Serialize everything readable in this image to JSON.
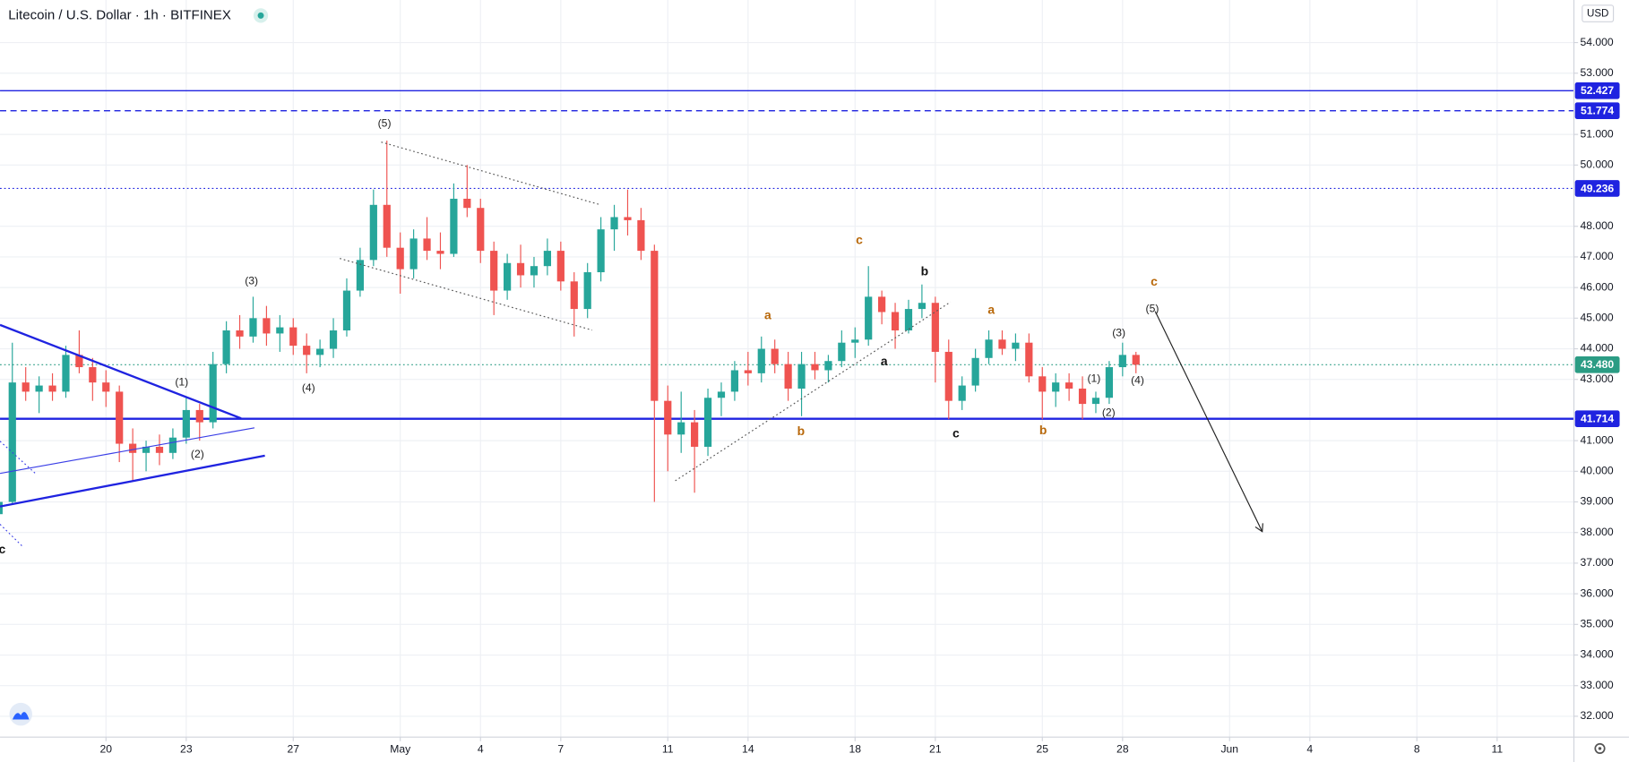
{
  "chart_data": {
    "type": "candlestick",
    "title": "Litecoin / U.S. Dollar · 1h · BITFINEX",
    "currency": "USD",
    "up_color": "#26a69a",
    "down_color": "#ef5350",
    "grid": true,
    "xlim": [
      16.04,
      74.87
    ],
    "ylim": [
      31.32,
      55.39
    ],
    "xticks": [
      20,
      23,
      27,
      {
        "value": 31,
        "label": "May"
      },
      {
        "value": 34,
        "label": "4"
      },
      {
        "value": 37,
        "label": "7"
      },
      {
        "value": 41,
        "label": "11"
      },
      {
        "value": 44,
        "label": "14"
      },
      {
        "value": 48,
        "label": "18"
      },
      {
        "value": 51,
        "label": "21"
      },
      {
        "value": 55,
        "label": "25"
      },
      {
        "value": 58,
        "label": "28"
      },
      {
        "value": 62,
        "label": "Jun"
      },
      {
        "value": 65,
        "label": "4"
      },
      {
        "value": 69,
        "label": "8"
      },
      {
        "value": 72,
        "label": "11"
      }
    ],
    "yticks": [
      {
        "value": 32,
        "label": "32.000"
      },
      {
        "value": 33,
        "label": "33.000"
      },
      {
        "value": 34,
        "label": "34.000"
      },
      {
        "value": 35,
        "label": "35.000"
      },
      {
        "value": 36,
        "label": "36.000"
      },
      {
        "value": 37,
        "label": "37.000"
      },
      {
        "value": 38,
        "label": "38.000"
      },
      {
        "value": 39,
        "label": "39.000"
      },
      {
        "value": 40,
        "label": "40.000"
      },
      {
        "value": 41,
        "label": "41.000"
      },
      {
        "value": 43,
        "label": "43.000"
      },
      {
        "value": 44,
        "label": "44.000"
      },
      {
        "value": 45,
        "label": "45.000"
      },
      {
        "value": 46,
        "label": "46.000"
      },
      {
        "value": 47,
        "label": "47.000"
      },
      {
        "value": 48,
        "label": "48.000"
      },
      {
        "value": 50,
        "label": "50.000"
      },
      {
        "value": 51,
        "label": "51.000"
      },
      {
        "value": 53,
        "label": "53.000"
      },
      {
        "value": 54,
        "label": "54.000"
      }
    ],
    "x": [
      16,
      16.5,
      17,
      17.5,
      18,
      18.5,
      19,
      19.5,
      20,
      20.5,
      21,
      21.5,
      22,
      22.5,
      23,
      23.5,
      24,
      24.5,
      25,
      25.5,
      26,
      26.5,
      27,
      27.5,
      28,
      28.5,
      29,
      29.5,
      30,
      30.5,
      31,
      31.5,
      32,
      32.5,
      33,
      33.5,
      34,
      34.5,
      35,
      35.5,
      36,
      36.5,
      37,
      37.5,
      38,
      38.5,
      39,
      39.5,
      40,
      40.5,
      41,
      41.5,
      42,
      42.5,
      43,
      43.5,
      44,
      44.5,
      45,
      45.5,
      46,
      46.5,
      47,
      47.5,
      48,
      48.5,
      49,
      49.5,
      50,
      50.5,
      51,
      51.5,
      52,
      52.5,
      53,
      53.5,
      54,
      54.5,
      55,
      55.5,
      56,
      56.5,
      57,
      57.5,
      58,
      58.5
    ],
    "open": [
      38.6,
      39.0,
      42.9,
      42.6,
      42.8,
      42.6,
      43.8,
      43.4,
      42.9,
      42.6,
      40.9,
      40.6,
      40.8,
      40.6,
      41.1,
      42.0,
      41.6,
      43.5,
      44.6,
      44.4,
      45.0,
      44.5,
      44.7,
      44.1,
      43.8,
      44.0,
      44.6,
      45.9,
      46.9,
      48.7,
      47.3,
      46.6,
      47.6,
      47.2,
      47.1,
      48.9,
      48.6,
      47.2,
      45.9,
      46.8,
      46.4,
      46.7,
      47.2,
      46.2,
      45.3,
      46.5,
      47.9,
      48.3,
      48.2,
      47.2,
      42.3,
      41.2,
      41.6,
      40.8,
      42.4,
      42.6,
      43.3,
      43.2,
      44.0,
      43.5,
      42.7,
      43.5,
      43.3,
      43.6,
      44.2,
      44.3,
      45.7,
      45.2,
      44.6,
      45.3,
      45.5,
      43.9,
      42.3,
      42.8,
      43.7,
      44.3,
      44.0,
      44.2,
      43.1,
      42.6,
      42.9,
      42.7,
      42.2,
      42.4,
      43.4,
      43.8
    ],
    "high": [
      39.2,
      44.2,
      43.4,
      43.1,
      43.2,
      44.1,
      44.6,
      43.7,
      43.3,
      42.8,
      41.4,
      41.0,
      41.2,
      41.4,
      42.4,
      42.2,
      43.9,
      44.9,
      45.1,
      45.7,
      45.4,
      45.1,
      45.0,
      44.5,
      44.3,
      45.0,
      46.3,
      47.3,
      49.2,
      50.8,
      47.8,
      47.9,
      48.3,
      47.8,
      49.4,
      50.0,
      48.9,
      47.5,
      47.1,
      47.4,
      47.0,
      47.6,
      47.5,
      46.5,
      46.8,
      48.3,
      48.7,
      49.2,
      48.6,
      47.4,
      42.8,
      42.6,
      42.0,
      42.7,
      42.9,
      43.6,
      43.9,
      44.4,
      44.3,
      43.9,
      43.9,
      43.9,
      43.8,
      44.6,
      44.7,
      46.7,
      45.9,
      45.5,
      45.6,
      46.1,
      45.7,
      44.3,
      43.1,
      44.0,
      44.6,
      44.6,
      44.5,
      44.5,
      43.4,
      43.2,
      43.2,
      43.1,
      42.6,
      43.6,
      44.2,
      43.9
    ],
    "low": [
      38.1,
      38.9,
      42.3,
      41.9,
      42.3,
      42.4,
      43.2,
      42.3,
      42.1,
      40.3,
      39.7,
      40.0,
      40.2,
      40.4,
      40.9,
      41.0,
      41.4,
      43.2,
      44.0,
      44.2,
      44.1,
      43.9,
      43.8,
      43.2,
      43.4,
      43.7,
      44.4,
      45.7,
      46.7,
      47.0,
      45.8,
      46.3,
      46.9,
      46.6,
      47.0,
      48.3,
      46.8,
      45.1,
      45.6,
      46.0,
      46.0,
      46.4,
      45.9,
      44.4,
      45.0,
      46.2,
      47.2,
      47.7,
      46.9,
      39.0,
      40.0,
      40.6,
      39.3,
      40.5,
      41.8,
      42.3,
      42.8,
      42.9,
      43.2,
      42.3,
      41.8,
      43.0,
      42.9,
      43.4,
      43.7,
      44.1,
      44.8,
      44.0,
      44.5,
      45.0,
      42.9,
      41.7,
      42.0,
      42.6,
      43.5,
      43.8,
      43.6,
      42.9,
      41.7,
      42.1,
      42.3,
      41.7,
      41.9,
      42.2,
      43.1,
      43.2
    ],
    "close": [
      39.0,
      42.9,
      42.6,
      42.8,
      42.6,
      43.8,
      43.4,
      42.9,
      42.6,
      40.9,
      40.6,
      40.8,
      40.6,
      41.1,
      42.0,
      41.6,
      43.5,
      44.6,
      44.4,
      45.0,
      44.5,
      44.7,
      44.1,
      43.8,
      44.0,
      44.6,
      45.9,
      46.9,
      48.7,
      47.3,
      46.6,
      47.6,
      47.2,
      47.1,
      48.9,
      48.6,
      47.2,
      45.9,
      46.8,
      46.4,
      46.7,
      47.2,
      46.2,
      45.3,
      46.5,
      47.9,
      48.3,
      48.2,
      47.2,
      42.3,
      41.2,
      41.6,
      40.8,
      42.4,
      42.6,
      43.3,
      43.2,
      44.0,
      43.5,
      42.7,
      43.5,
      43.3,
      43.6,
      44.2,
      44.3,
      45.7,
      45.2,
      44.6,
      45.3,
      45.5,
      43.9,
      42.3,
      42.8,
      43.7,
      44.3,
      44.0,
      44.2,
      43.1,
      42.6,
      42.9,
      42.7,
      42.2,
      42.4,
      43.4,
      43.8,
      43.48
    ],
    "price_lines": [
      {
        "value": 52.427,
        "style": "solid",
        "color": "#1f23e0"
      },
      {
        "value": 51.774,
        "style": "dashed",
        "color": "#1f23e0"
      },
      {
        "value": 49.236,
        "style": "dotted",
        "color": "#1f23e0"
      },
      {
        "value": 43.48,
        "label": "43.480",
        "style": "dotted",
        "color": "#2b9c84"
      },
      {
        "value": 41.714,
        "style": "thick",
        "color": "#1f23e0"
      }
    ],
    "trendlines": [
      {
        "x": [
          16.04,
          25.05
        ],
        "y": [
          44.78,
          41.73
        ],
        "style": "thick",
        "color": "#1f23e0"
      },
      {
        "x": [
          16.04,
          25.94
        ],
        "y": [
          38.85,
          40.51
        ],
        "style": "thick",
        "color": "#1f23e0"
      },
      {
        "x": [
          16.04,
          25.55
        ],
        "y": [
          39.93,
          41.42
        ],
        "style": "thin",
        "color": "#3a3ee6"
      },
      {
        "x": [
          16.04,
          17.4
        ],
        "y": [
          40.98,
          39.9
        ],
        "style": "dotted",
        "color": "#3a3ee6"
      },
      {
        "x": [
          16.04,
          16.9
        ],
        "y": [
          38.27,
          37.53
        ],
        "style": "dotted",
        "color": "#3a3ee6"
      },
      {
        "x": [
          30.29,
          38.45
        ],
        "y": [
          50.75,
          48.71
        ],
        "style": "dotted",
        "color": "#555555"
      },
      {
        "x": [
          28.74,
          38.17
        ],
        "y": [
          46.95,
          44.61
        ],
        "style": "dotted",
        "color": "#555555"
      },
      {
        "x": [
          41.28,
          51.57
        ],
        "y": [
          39.69,
          45.53
        ],
        "style": "dotted",
        "color": "#555555"
      },
      {
        "x": [
          59.22,
          63.22
        ],
        "y": [
          45.22,
          38.03
        ],
        "style": "arrow",
        "color": "#222222"
      }
    ],
    "annotations": [
      {
        "text": "(5)",
        "x": 30.41,
        "y": 51.35,
        "color": "#222222"
      },
      {
        "text": "(3)",
        "x": 25.44,
        "y": 46.2,
        "color": "#222222"
      },
      {
        "text": "(4)",
        "x": 27.57,
        "y": 42.71,
        "color": "#222222"
      },
      {
        "text": "(1)",
        "x": 22.83,
        "y": 42.9,
        "color": "#222222"
      },
      {
        "text": "(2)",
        "x": 23.42,
        "y": 40.54,
        "color": "#222222"
      },
      {
        "text": "c",
        "x": 16.12,
        "y": 37.42,
        "color": "#111111"
      },
      {
        "text": "a",
        "x": 44.74,
        "y": 45.08,
        "color": "#b8680a"
      },
      {
        "text": "b",
        "x": 45.98,
        "y": 41.29,
        "color": "#b8680a"
      },
      {
        "text": "c",
        "x": 48.16,
        "y": 47.53,
        "color": "#b8680a"
      },
      {
        "text": "b",
        "x": 50.6,
        "y": 46.51,
        "color": "#111111"
      },
      {
        "text": "a",
        "x": 49.09,
        "y": 43.56,
        "color": "#111111"
      },
      {
        "text": "c",
        "x": 51.77,
        "y": 41.22,
        "color": "#111111"
      },
      {
        "text": "a",
        "x": 53.09,
        "y": 45.25,
        "color": "#b8680a"
      },
      {
        "text": "b",
        "x": 55.03,
        "y": 41.32,
        "color": "#b8680a"
      },
      {
        "text": "(1)",
        "x": 56.93,
        "y": 43.02,
        "color": "#222222"
      },
      {
        "text": "(2)",
        "x": 57.48,
        "y": 41.9,
        "color": "#222222"
      },
      {
        "text": "(3)",
        "x": 57.86,
        "y": 44.51,
        "color": "#222222"
      },
      {
        "text": "(4)",
        "x": 58.56,
        "y": 42.95,
        "color": "#222222"
      },
      {
        "text": "(5)",
        "x": 59.11,
        "y": 45.29,
        "color": "#222222"
      },
      {
        "text": "c",
        "x": 59.18,
        "y": 46.17,
        "color": "#b8680a"
      }
    ]
  }
}
